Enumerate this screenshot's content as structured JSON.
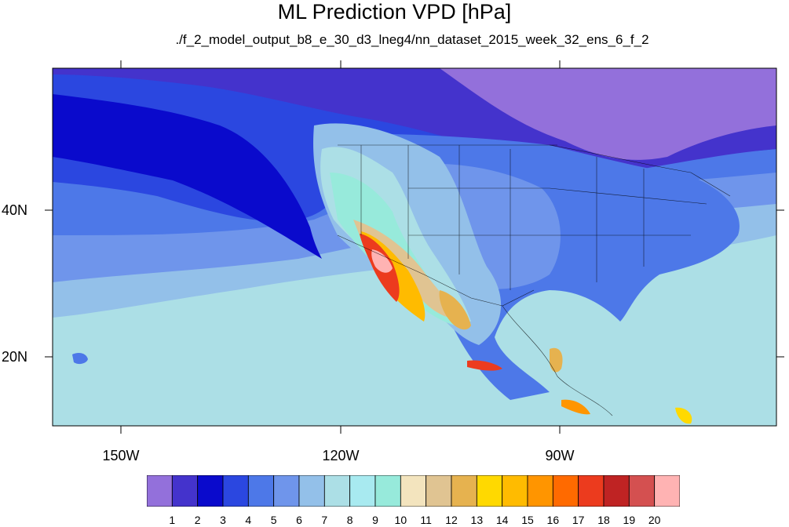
{
  "title": "ML Prediction VPD [hPa]",
  "subtitle": "./f_2_model_output_b8_e_30_d3_lneg4/nn_dataset_2015_week_32_ens_6_f_2",
  "lat_labels": [
    "40N",
    "20N"
  ],
  "lon_labels": [
    "150W",
    "120W",
    "90W"
  ],
  "colorbar": {
    "labels": [
      "1",
      "2",
      "3",
      "4",
      "5",
      "6",
      "7",
      "8",
      "9",
      "10",
      "11",
      "12",
      "13",
      "14",
      "15",
      "16",
      "17",
      "18",
      "19",
      "20"
    ],
    "colors": [
      "#9370db",
      "#4433cc",
      "#0a0acc",
      "#2b47e0",
      "#4d78e8",
      "#6f95eb",
      "#93c0e9",
      "#acdfe6",
      "#a8eaf0",
      "#97eadb",
      "#f3e4be",
      "#e0c492",
      "#e6b24f",
      "#ffd900",
      "#ffbb00",
      "#ff9500",
      "#ff6a00",
      "#ec3b1e",
      "#bf2323",
      "#d45050",
      "#ffb3b3"
    ]
  },
  "map_colors": {
    "ocean_high_lat": "#9370db",
    "ocean_mid": "#0a0acc",
    "ocean_blue": "#2b47e0",
    "ocean_light": "#6f95eb",
    "ocean_pale": "#93c0e9",
    "tropics": "#acdfe6",
    "land_east": "#4d78e8",
    "land_west": "#93c0e9",
    "desert": "#e0c492",
    "hot_core": "#ec3b1e",
    "hottest": "#ffb3b3"
  }
}
